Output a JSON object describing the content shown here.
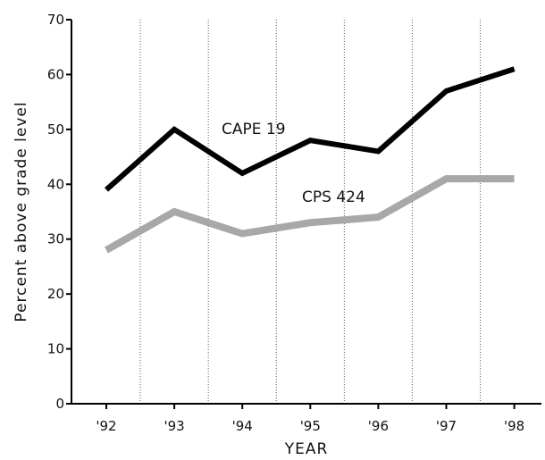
{
  "chart_data": {
    "type": "line",
    "xlabel": "YEAR",
    "ylabel": "Percent above grade level",
    "categories": [
      "'92",
      "'93",
      "'94",
      "'95",
      "'96",
      "'97",
      "'98"
    ],
    "ylim": [
      0,
      70
    ],
    "yticks": [
      0,
      10,
      20,
      30,
      40,
      50,
      60,
      70
    ],
    "grid": "vertical dotted lines",
    "series": [
      {
        "name": "CAPE 19",
        "color": "#000000",
        "values": [
          39,
          50,
          42,
          48,
          46,
          57,
          61
        ]
      },
      {
        "name": "CPS 424",
        "color": "#a8a8a8",
        "values": [
          28,
          35,
          31,
          33,
          34,
          41,
          41
        ]
      }
    ]
  }
}
